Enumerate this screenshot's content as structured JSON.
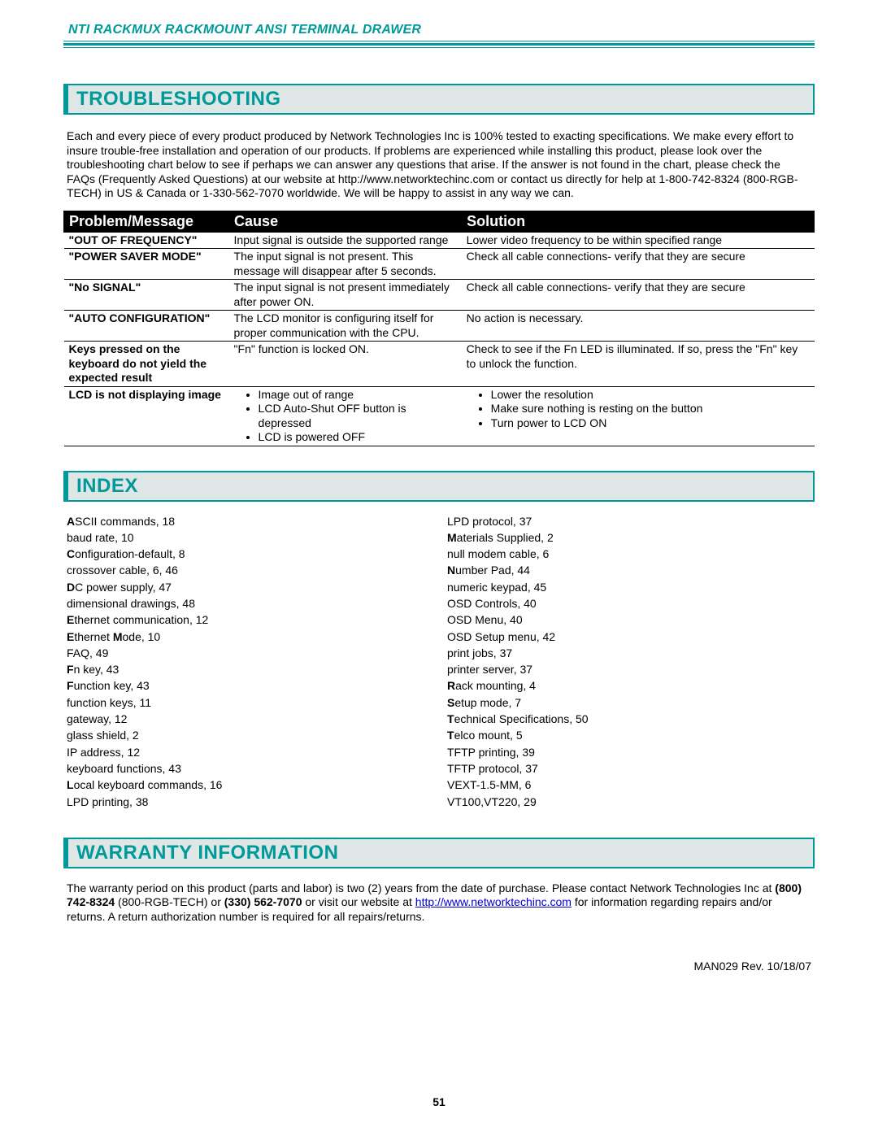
{
  "colors": {
    "teal": "#009999",
    "heading_bg": "#dfe6e6",
    "black": "#000000",
    "white": "#ffffff",
    "link": "#0000cc"
  },
  "doc_header": "NTI RACKMUX RACKMOUNT ANSI TERMINAL DRAWER",
  "sections": {
    "troubleshooting": {
      "title": "TROUBLESHOOTING",
      "intro": "Each and every piece of every product produced by Network Technologies Inc is 100% tested to exacting specifications.   We make every effort to insure trouble-free installation and operation of our products. If problems are experienced while installing this product, please look over the troubleshooting chart below to see if perhaps we can answer any questions that arise.    If the answer is not found in the chart, please check the FAQs (Frequently Asked Questions) at our website at http://www.networktechinc.com or contact us directly for help at 1-800-742-8324 (800-RGB-TECH) in US & Canada or 1-330-562-7070 worldwide.    We will be happy to assist in any way we can."
    },
    "index": {
      "title": "INDEX"
    },
    "warranty": {
      "title": "WARRANTY INFORMATION",
      "text_pre": "The warranty period on this product (parts and labor) is two (2) years from the date of purchase.  Please contact Network Technologies Inc at ",
      "phone1_bold": "(800) 742-8324",
      "text_mid1": "  (800-RGB-TECH) or ",
      "phone2_bold": "(330) 562-7070",
      "text_mid2": " or visit our website at ",
      "link_text": "http://www.networktechinc.com",
      "text_post": " for information regarding repairs and/or returns.  A return authorization number is required for all repairs/returns."
    }
  },
  "table": {
    "headers": [
      "Problem/Message",
      "Cause",
      "Solution"
    ],
    "col_widths_pct": [
      22,
      31,
      47
    ],
    "rows": [
      {
        "problem": "\"OUT OF FREQUENCY\"",
        "cause": "Input signal is outside the supported range",
        "solution": "Lower video frequency to be within specified range"
      },
      {
        "problem": "\"POWER SAVER MODE\"",
        "cause": "The input signal is not present.  This message will disappear after 5 seconds.",
        "solution": "Check all cable connections- verify that they are secure"
      },
      {
        "problem": "\"No SIGNAL\"",
        "cause": "The input signal is not present immediately after power ON.",
        "solution": "Check all cable connections- verify that they are secure"
      },
      {
        "problem": "\"AUTO CONFIGURATION\"",
        "cause": "The LCD monitor is configuring itself for proper communication with the CPU.",
        "solution": "No action is necessary."
      },
      {
        "problem": "Keys pressed on the keyboard do not yield the expected result",
        "cause": "\"Fn\" function is locked ON.",
        "solution": "Check to see if the Fn LED is illuminated.  If so, press the \"Fn\" key to unlock the function."
      },
      {
        "problem": "LCD is not displaying image",
        "cause_list": [
          "Image out of range",
          "LCD Auto-Shut OFF button is depressed",
          "LCD is powered OFF"
        ],
        "solution_list": [
          "Lower the resolution",
          "Make sure nothing is resting on the button",
          "Turn power to LCD ON"
        ]
      }
    ]
  },
  "index_entries": {
    "left": [
      {
        "bold": "A",
        "rest": "SCII commands, 18"
      },
      {
        "bold": "",
        "rest": "baud rate, 10"
      },
      {
        "bold": "C",
        "rest": "onfiguration-default, 8"
      },
      {
        "bold": "",
        "rest": "crossover cable, 6, 46"
      },
      {
        "bold": "D",
        "rest": "C power supply, 47"
      },
      {
        "bold": "",
        "rest": "dimensional drawings, 48"
      },
      {
        "bold": "E",
        "rest": "thernet communication, 12"
      },
      {
        "bold": "E",
        "rest": "thernet ",
        "bold2": "M",
        "rest2": "ode, 10"
      },
      {
        "bold": "",
        "rest": "FAQ, 49"
      },
      {
        "bold": "F",
        "rest": "n key, 43"
      },
      {
        "bold": "F",
        "rest": "unction key, 43"
      },
      {
        "bold": "",
        "rest": "function keys, 11"
      },
      {
        "bold": "",
        "rest": "gateway, 12"
      },
      {
        "bold": "",
        "rest": "glass shield, 2"
      },
      {
        "bold": "",
        "rest": "IP address, 12"
      },
      {
        "bold": "",
        "rest": "keyboard functions, 43"
      },
      {
        "bold": "L",
        "rest": "ocal keyboard commands, 16"
      },
      {
        "bold": "",
        "rest": "LPD printing, 38"
      }
    ],
    "right": [
      {
        "bold": "",
        "rest": "LPD protocol, 37"
      },
      {
        "bold": "M",
        "rest": "aterials Supplied, 2"
      },
      {
        "bold": "",
        "rest": "null modem cable, 6"
      },
      {
        "bold": "N",
        "rest": "umber Pad, 44"
      },
      {
        "bold": "",
        "rest": "numeric keypad, 45"
      },
      {
        "bold": "",
        "rest": "OSD Controls, 40"
      },
      {
        "bold": "",
        "rest": "OSD Menu, 40"
      },
      {
        "bold": "",
        "rest": "OSD Setup menu, 42"
      },
      {
        "bold": "",
        "rest": "print jobs, 37"
      },
      {
        "bold": "",
        "rest": "printer server, 37"
      },
      {
        "bold": "R",
        "rest": "ack mounting, 4"
      },
      {
        "bold": "S",
        "rest": "etup mode, 7"
      },
      {
        "bold": "T",
        "rest": "echnical Specifications, 50"
      },
      {
        "bold": "T",
        "rest": "elco mount, 5"
      },
      {
        "bold": "",
        "rest": "TFTP printing, 39"
      },
      {
        "bold": "",
        "rest": "TFTP protocol, 37"
      },
      {
        "bold": "",
        "rest": "VEXT-1.5-MM, 6"
      },
      {
        "bold": "",
        "rest": "VT100,VT220, 29"
      }
    ]
  },
  "man_rev": "MAN029    Rev. 10/18/07",
  "page_number": "51"
}
